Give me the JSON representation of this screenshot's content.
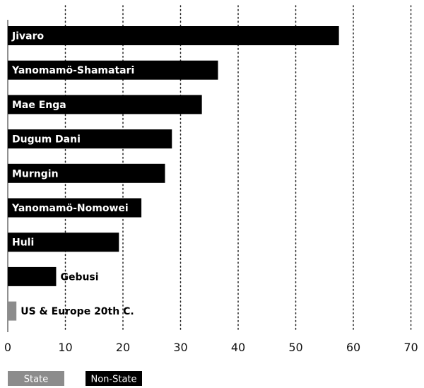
{
  "chart_data": {
    "type": "bar",
    "orientation": "horizontal",
    "title": "",
    "xlabel": "",
    "ylabel": "",
    "xlim": [
      0,
      70
    ],
    "ticks": [
      0,
      10,
      20,
      30,
      40,
      50,
      60,
      70
    ],
    "grid": "dotted vertical",
    "categories": [
      "Jivaro",
      "Yanomamö-Shamatari",
      "Mae Enga",
      "Dugum Dani",
      "Murngin",
      "Yanomamö-Nomowei",
      "Huli",
      "Gebusi",
      "US & Europe 20th C."
    ],
    "values": [
      57.5,
      36.5,
      33.7,
      28.5,
      27.3,
      23.2,
      19.3,
      8.4,
      1.5
    ],
    "groups": [
      "Non-State",
      "Non-State",
      "Non-State",
      "Non-State",
      "Non-State",
      "Non-State",
      "Non-State",
      "Non-State",
      "State"
    ],
    "legend": [
      {
        "label": "State",
        "color": "#8c8c8c"
      },
      {
        "label": "Non-State",
        "color": "#000000"
      }
    ],
    "colors": {
      "Non-State": "#000000",
      "State": "#8c8c8c"
    }
  }
}
